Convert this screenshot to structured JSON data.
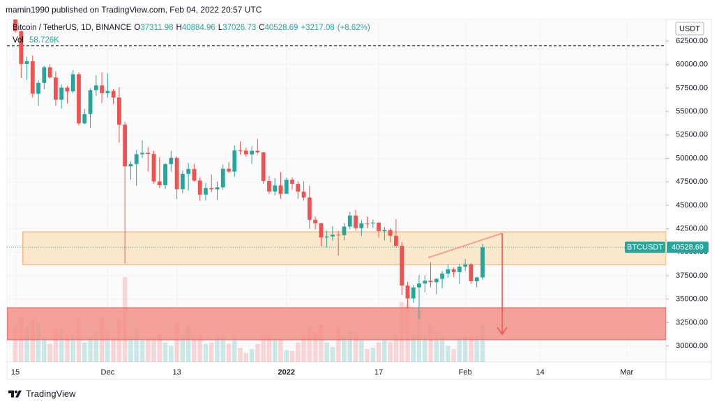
{
  "header": {
    "published": "mamin1990 published on TradingView.com, Feb 04, 2022 20:57 UTC"
  },
  "footer": {
    "brand": "TradingView"
  },
  "chart_data": {
    "type": "candlestick",
    "title": "Bitcoin / TetherUS, 1D, BINANCE",
    "ohlc_keys": [
      "O",
      "H",
      "L",
      "C"
    ],
    "change_label": "+3217.08",
    "change_pct_label": "(+8.62%)",
    "currency": "USDT",
    "symbol_label": "BTCUSDT",
    "up_color": "#26a69a",
    "down_color": "#ef5350",
    "open": [
      65466,
      63557,
      60058,
      60344,
      56891,
      58052,
      59707,
      58622,
      56247,
      57541,
      57139,
      58960,
      53726,
      54721,
      57274,
      57776,
      56950,
      57184,
      56480,
      53601,
      49152,
      49396,
      50441,
      50588,
      50471,
      47545,
      47140,
      49389,
      50053,
      46702,
      48343,
      48864,
      47632,
      46131,
      46834,
      46681,
      46914,
      48889,
      48588,
      50838,
      50821,
      50429,
      50809,
      50640,
      47588,
      46464,
      47120,
      46216,
      47722,
      47286,
      46446,
      45833,
      43451,
      43082,
      41566,
      41679,
      41864,
      41822,
      42729,
      43903,
      42561,
      43079,
      43071,
      43157,
      42250,
      42375,
      41744,
      40680,
      36445,
      35071,
      36244,
      36660,
      36958,
      36809,
      37160,
      37716,
      38166,
      37881,
      38466,
      38694,
      36896,
      37311.98
    ],
    "high": [
      66401,
      63617,
      60840,
      60976,
      58320,
      59845,
      60029,
      59266,
      57875,
      57735,
      59398,
      59170,
      55280,
      57445,
      58865,
      59176,
      59053,
      57375,
      57600,
      53859,
      49699,
      50891,
      51936,
      51200,
      50797,
      50125,
      49485,
      50797,
      50189,
      48700,
      49500,
      49436,
      47995,
      47392,
      48300,
      47537,
      49328,
      49576,
      51375,
      51810,
      51156,
      51281,
      52088,
      50704,
      48119,
      47879,
      48548,
      47954,
      47990,
      47570,
      47557,
      47070,
      43816,
      43145,
      42300,
      42786,
      42248,
      43100,
      44322,
      44500,
      43448,
      43800,
      43475,
      43179,
      42691,
      42563,
      43505,
      41100,
      36835,
      36499,
      37550,
      37545,
      38919,
      37234,
      38000,
      38720,
      38359,
      38744,
      39265,
      38855,
      37387,
      40884.96
    ],
    "low": [
      63400,
      58574,
      58373,
      56474,
      55600,
      57353,
      58486,
      55610,
      55317,
      55837,
      56938,
      53500,
      53610,
      53256,
      56666,
      55875,
      56458,
      55777,
      51680,
      38800,
      47727,
      47100,
      50039,
      48600,
      47320,
      46852,
      46751,
      48600,
      45672,
      46290,
      46547,
      47511,
      45456,
      45500,
      46406,
      45558,
      46630,
      48421,
      48049,
      50384,
      50171,
      49412,
      50450,
      47313,
      46201,
      46060,
      45678,
      46208,
      46654,
      45696,
      45500,
      42500,
      42430,
      40610,
      40501,
      41200,
      39650,
      41268,
      42450,
      42311,
      41725,
      42563,
      42581,
      41540,
      41250,
      41077,
      40553,
      35440,
      34008,
      34601,
      32917,
      35701,
      36234,
      35507,
      36155,
      37268,
      37351,
      36632,
      38000,
      36586,
      36250,
      37026.73
    ],
    "close": [
      63557,
      60058,
      60344,
      56891,
      58052,
      59707,
      58622,
      56247,
      57541,
      57139,
      58960,
      53726,
      54721,
      57274,
      57776,
      56950,
      57184,
      56480,
      53601,
      49152,
      49396,
      50441,
      50588,
      50471,
      47545,
      47140,
      49389,
      50053,
      46702,
      48343,
      48864,
      47632,
      46131,
      46834,
      46681,
      46914,
      48889,
      48588,
      50838,
      50821,
      50429,
      50809,
      50640,
      47588,
      46464,
      47120,
      46216,
      47722,
      47286,
      46446,
      45833,
      43451,
      43082,
      41566,
      41679,
      41864,
      41822,
      42729,
      43903,
      42561,
      43079,
      43071,
      43157,
      42250,
      42375,
      41744,
      40680,
      36445,
      35071,
      36244,
      36660,
      36958,
      36809,
      37160,
      37716,
      38166,
      37881,
      38466,
      38694,
      36896,
      37311.61,
      40528.69
    ],
    "volume": {
      "name": "Vol",
      "last_label": "58.726K",
      "values": [
        55000,
        70000,
        55000,
        65000,
        60000,
        38000,
        28000,
        50000,
        52000,
        43000,
        42000,
        70000,
        30000,
        38000,
        48000,
        68000,
        48000,
        38000,
        66000,
        131000,
        40000,
        52000,
        35000,
        38000,
        38000,
        44000,
        30000,
        25000,
        60000,
        42000,
        55000,
        38000,
        42000,
        28000,
        30000,
        40000,
        40000,
        28000,
        40000,
        22000,
        14000,
        20000,
        28000,
        40000,
        42000,
        36000,
        35000,
        18000,
        17000,
        30000,
        42000,
        53000,
        45000,
        58000,
        30000,
        23000,
        55000,
        39000,
        48000,
        45000,
        34000,
        20000,
        22000,
        30000,
        34000,
        31000,
        42000,
        92000,
        88000,
        45000,
        80000,
        40000,
        58000,
        45000,
        40000,
        25000,
        20000,
        38000,
        40000,
        40000,
        40000,
        58726
      ]
    },
    "xlim": [
      -1.45,
      112.8
    ],
    "xticks": [
      {
        "value": 0,
        "label": "15"
      },
      {
        "value": 16,
        "label": "Dec"
      },
      {
        "value": 28,
        "label": "13"
      },
      {
        "value": 47,
        "label": "2022"
      },
      {
        "value": 63,
        "label": "17"
      },
      {
        "value": 78,
        "label": "Feb"
      },
      {
        "value": 91,
        "label": "14"
      },
      {
        "value": 106,
        "label": "Mar"
      }
    ],
    "ylim": [
      28300,
      64800
    ],
    "yticks": [
      {
        "value": 30000,
        "label": "30000.00"
      },
      {
        "value": 32500,
        "label": "32500.00"
      },
      {
        "value": 35000,
        "label": "35000.00"
      },
      {
        "value": 37500,
        "label": "37500.00"
      },
      {
        "value": 40000,
        "label": "40000.00"
      },
      {
        "value": 42500,
        "label": "42500.00"
      },
      {
        "value": 45000,
        "label": "45000.00"
      },
      {
        "value": 47500,
        "label": "47500.00"
      },
      {
        "value": 50000,
        "label": "50000.00"
      },
      {
        "value": 52500,
        "label": "52500.00"
      },
      {
        "value": 55000,
        "label": "55000.00"
      },
      {
        "value": 57500,
        "label": "57500.00"
      },
      {
        "value": 60000,
        "label": "60000.00"
      },
      {
        "value": 62500,
        "label": "62500.00"
      }
    ],
    "grid": true,
    "annotations": {
      "zones": [
        {
          "from": 38680,
          "to": 42170,
          "x_start": 1.3,
          "color": "#fbe5c4",
          "border": "#f7a35c"
        },
        {
          "from": 30670,
          "to": 34080,
          "color": "#f28b82",
          "border": "#e5534b"
        }
      ],
      "dashed_level": 62000,
      "trend_line": {
        "x": [
          71.6,
          84.4
        ],
        "y": [
          39420,
          42020
        ],
        "color": "#f7a08a"
      },
      "arrow": {
        "x": 84.4,
        "from": 42020,
        "to": 31260,
        "color": "#ef5350"
      }
    }
  }
}
